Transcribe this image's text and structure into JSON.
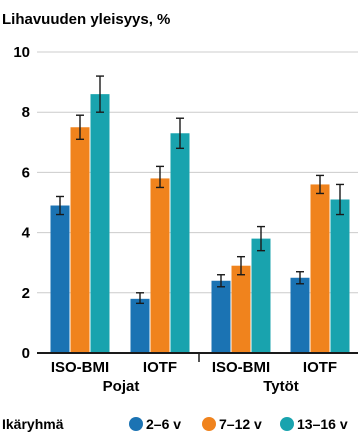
{
  "colors": {
    "series": [
      "#1b73b3",
      "#f0831d",
      "#19a3ae"
    ],
    "axis": "#1a1a1a",
    "grid": "#cccccc",
    "errorbar": "#1a1a1a"
  },
  "chart_data": {
    "type": "bar",
    "title": "Lihavuuden yleisyys, %",
    "xlabel": "",
    "ylabel": "",
    "ylim": [
      0,
      10
    ],
    "yticks": [
      0,
      2,
      4,
      6,
      8,
      10
    ],
    "grid": true,
    "groups": [
      {
        "label": "Pojat",
        "categories": [
          "ISO-BMI",
          "IOTF"
        ]
      },
      {
        "label": "Tytöt",
        "categories": [
          "ISO-BMI",
          "IOTF"
        ]
      }
    ],
    "categories": [
      "ISO-BMI",
      "IOTF",
      "ISO-BMI",
      "IOTF"
    ],
    "legend_title": "Ikäryhmä",
    "legend_position": "bottom",
    "series": [
      {
        "name": "2–6 v",
        "values": [
          4.9,
          1.8,
          2.4,
          2.5
        ],
        "err_low": [
          4.6,
          1.65,
          2.2,
          2.3
        ],
        "err_high": [
          5.2,
          2.0,
          2.6,
          2.7
        ]
      },
      {
        "name": "7–12 v",
        "values": [
          7.5,
          5.8,
          2.9,
          5.6
        ],
        "err_low": [
          7.1,
          5.5,
          2.6,
          5.3
        ],
        "err_high": [
          7.9,
          6.2,
          3.2,
          5.9
        ]
      },
      {
        "name": "13–16 v",
        "values": [
          8.6,
          7.3,
          3.8,
          5.1
        ],
        "err_low": [
          8.0,
          6.8,
          3.4,
          4.6
        ],
        "err_high": [
          9.2,
          7.8,
          4.2,
          5.6
        ]
      }
    ]
  }
}
